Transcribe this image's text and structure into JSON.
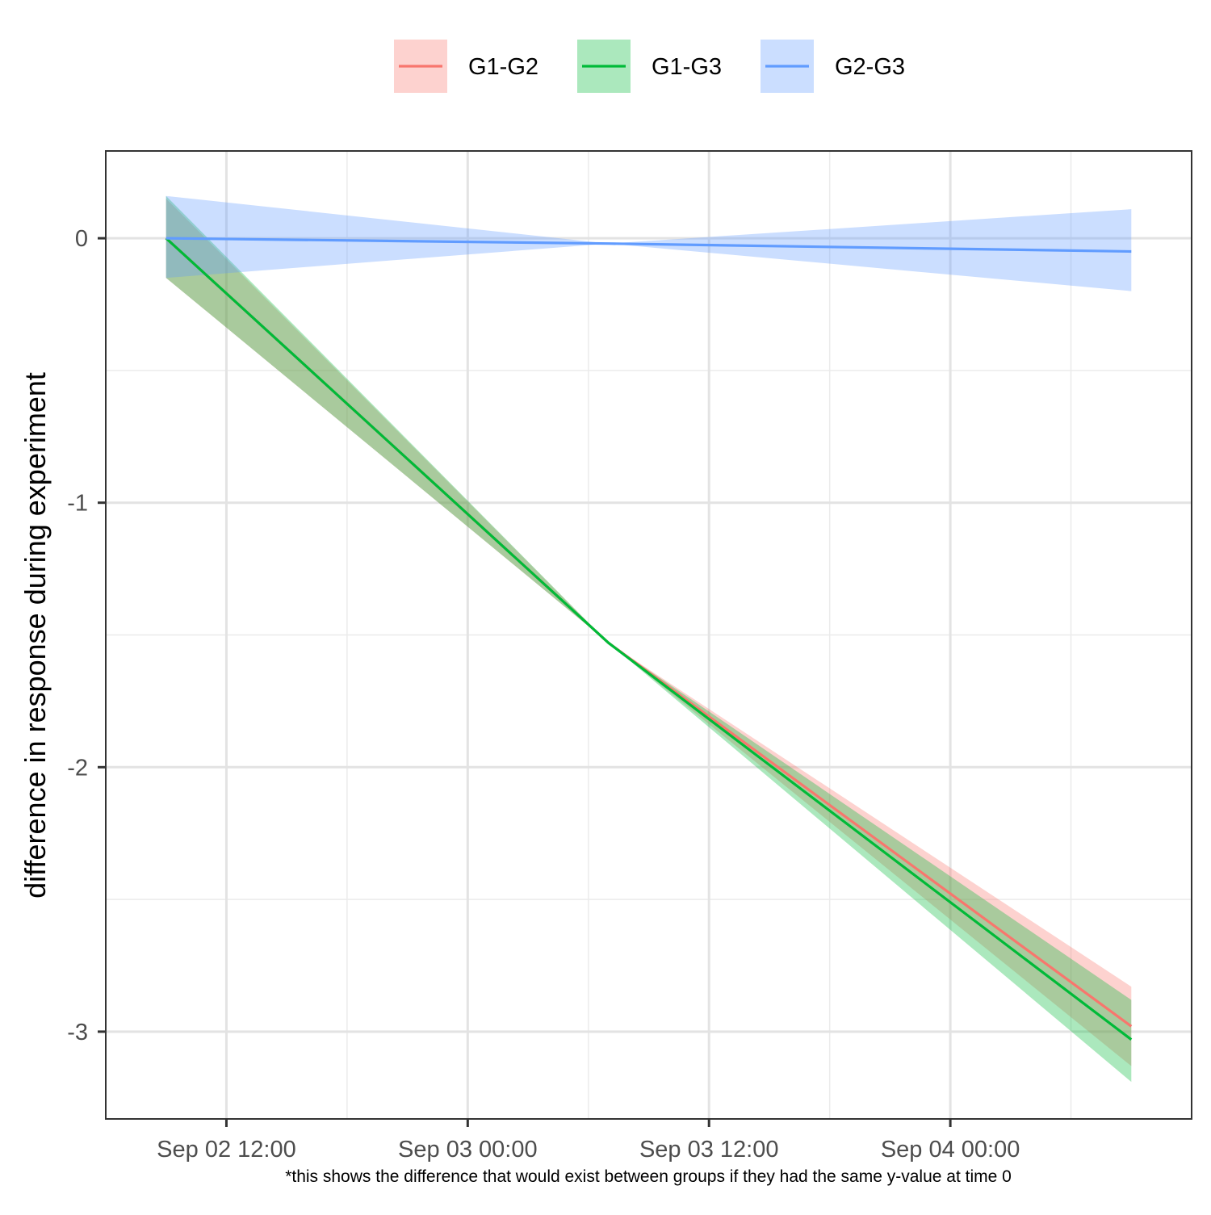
{
  "chart_data": {
    "type": "line",
    "x_axis": {
      "type": "datetime",
      "range": [
        "2025-09-02T06:00",
        "2025-09-04T12:00"
      ],
      "ticks": [
        {
          "value": "2025-09-02T12:00",
          "label": "Sep 02 12:00"
        },
        {
          "value": "2025-09-03T00:00",
          "label": "Sep 03 00:00"
        },
        {
          "value": "2025-09-03T12:00",
          "label": "Sep 03 12:00"
        },
        {
          "value": "2025-09-04T00:00",
          "label": "Sep 04 00:00"
        }
      ]
    },
    "y_axis": {
      "label": "difference in response during experiment",
      "ylim": [
        -3.33,
        0.33
      ],
      "ticks": [
        {
          "value": 0,
          "label": "0"
        },
        {
          "value": -1,
          "label": "-1"
        },
        {
          "value": -2,
          "label": "-2"
        },
        {
          "value": -3,
          "label": "-3"
        }
      ]
    },
    "grid": true,
    "legend": {
      "position": "top"
    },
    "caption": "*this shows the difference that would exist between groups if they had the same y-value at time 0",
    "series": [
      {
        "name": "G1-G2",
        "color": "#F8766D",
        "x": [
          "2025-09-02T09:00",
          "2025-09-03T07:00",
          "2025-09-04T09:00"
        ],
        "y": [
          0.0,
          -1.53,
          -2.98
        ],
        "ci_lower": [
          -0.15,
          -1.53,
          -3.13
        ],
        "ci_upper": [
          0.15,
          -1.53,
          -2.83
        ]
      },
      {
        "name": "G1-G3",
        "color": "#00BA38",
        "x": [
          "2025-09-02T09:00",
          "2025-09-03T07:00",
          "2025-09-04T09:00"
        ],
        "y": [
          0.0,
          -1.53,
          -3.03
        ],
        "ci_lower": [
          -0.15,
          -1.53,
          -3.19
        ],
        "ci_upper": [
          0.16,
          -1.53,
          -2.88
        ]
      },
      {
        "name": "G2-G3",
        "color": "#619CFF",
        "x": [
          "2025-09-02T09:00",
          "2025-09-03T07:00",
          "2025-09-04T09:00"
        ],
        "y": [
          0.0,
          -0.02,
          -0.05
        ],
        "ci_lower": [
          -0.15,
          -0.02,
          -0.2
        ],
        "ci_upper": [
          0.16,
          -0.02,
          0.11
        ]
      }
    ]
  }
}
